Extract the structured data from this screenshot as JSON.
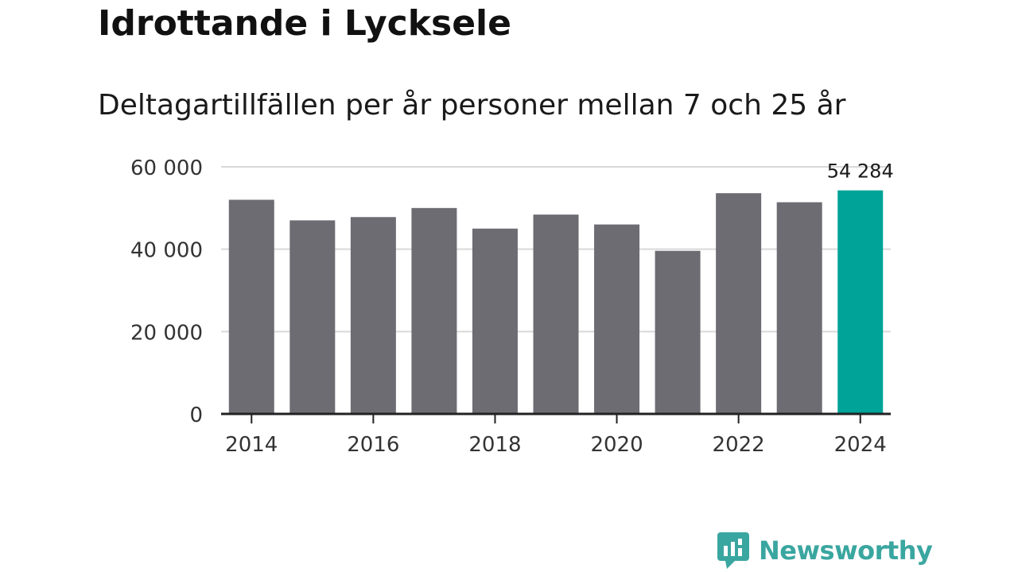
{
  "header": {
    "title": "Idrottande i Lycksele",
    "subtitle": "Deltagartillfällen per år personer mellan 7 och 25 år"
  },
  "brand": {
    "name": "Newsworthy",
    "color": "#3aa6a0"
  },
  "colors": {
    "bar": "#6d6c73",
    "highlight": "#00a398",
    "grid": "#d9d9d9",
    "axis": "#222222",
    "text": "#333333"
  },
  "chart_data": {
    "type": "bar",
    "title": "Idrottande i Lycksele",
    "subtitle": "Deltagartillfällen per år personer mellan 7 och 25 år",
    "xlabel": "",
    "ylabel": "",
    "categories": [
      "2014",
      "2015",
      "2016",
      "2017",
      "2018",
      "2019",
      "2020",
      "2021",
      "2022",
      "2023",
      "2024"
    ],
    "values": [
      52000,
      47000,
      47800,
      50000,
      45000,
      48400,
      46000,
      39600,
      53600,
      51400,
      54284
    ],
    "highlight_index": 10,
    "highlight_label": "54 284",
    "ylim": [
      0,
      60000
    ],
    "y_ticks": [
      0,
      20000,
      40000,
      60000
    ],
    "y_tick_labels": [
      "0",
      "20 000",
      "40 000",
      "60 000"
    ],
    "x_tick_labels": [
      "2014",
      "2016",
      "2018",
      "2020",
      "2022",
      "2024"
    ],
    "grid": true,
    "legend": "none"
  }
}
